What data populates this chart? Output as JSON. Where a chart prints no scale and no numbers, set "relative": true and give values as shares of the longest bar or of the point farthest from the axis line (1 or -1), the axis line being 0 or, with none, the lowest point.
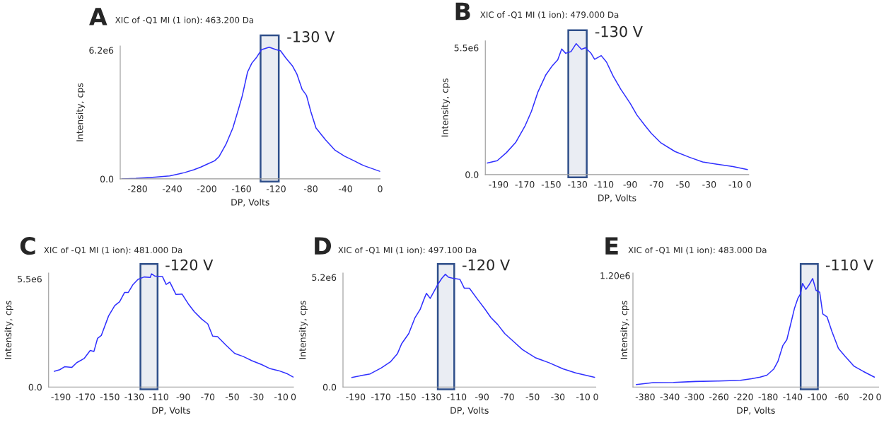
{
  "chart_data": [
    {
      "type": "line",
      "title": "A",
      "subtitle": "XIC of -Q1 MI (1 ion): 463.200 Da",
      "xlabel": "DP, Volts",
      "ylabel": "Intensity, cps",
      "series": [
        {
          "color": "#3030ff",
          "x": [
            -298,
            -282,
            -260,
            -243,
            -226,
            -215,
            -207,
            -199,
            -191,
            -186,
            -178,
            -170,
            -164,
            -159,
            -153,
            -148,
            -143,
            -137,
            -128,
            -120,
            -115,
            -109,
            -101,
            -96,
            -90,
            -85,
            -80,
            -74,
            -63,
            -52,
            -41,
            -30,
            -19,
            0
          ],
          "values": [
            0,
            20000.0,
            80000.0,
            140000.0,
            300000.0,
            440000.0,
            570000.0,
            720000.0,
            870000.0,
            1070000.0,
            1660000.0,
            2450000.0,
            3290000.0,
            4020000.0,
            5150000.0,
            5580000.0,
            5830000.0,
            6220000.0,
            6340000.0,
            6220000.0,
            6170000.0,
            5830000.0,
            5430000.0,
            5040000.0,
            4310000.0,
            4020000.0,
            3240000.0,
            2450000.0,
            1880000.0,
            1380000.0,
            1090000.0,
            870000.0,
            640000.0,
            360000.0
          ]
        }
      ],
      "xlim": [
        -300,
        0
      ],
      "xticks": [
        -280,
        -240,
        -200,
        -160,
        -120,
        -80,
        -40,
        0
      ],
      "ylim": [
        0,
        6400000
      ],
      "yticks": [
        {
          "value": 0,
          "label": "0.0"
        },
        {
          "value": 6200000,
          "label": "6.2e6"
        }
      ],
      "bands": [
        {
          "axis": "x",
          "from": -138,
          "to": -117,
          "label": "-130 V",
          "color": "#2f4f8a"
        }
      ]
    },
    {
      "type": "line",
      "title": "B",
      "subtitle": "XIC of -Q1 MI (1 ion): 479.000 Da",
      "xlabel": "DP, Volts",
      "ylabel": "Intensity, cps",
      "series": [
        {
          "color": "#3030ff",
          "x": [
            -198.5,
            -191,
            -184,
            -177,
            -170,
            -165,
            -160,
            -154,
            -149,
            -145,
            -142,
            -139,
            -135,
            -131,
            -127,
            -124,
            -120,
            -117,
            -112,
            -108,
            -103,
            -97,
            -90,
            -85,
            -79,
            -74,
            -67,
            -56,
            -45,
            -35,
            -24,
            -12,
            -1
          ],
          "values": [
            500000.0,
            600000.0,
            950000.0,
            1390000.0,
            2090000.0,
            2740000.0,
            3590000.0,
            4330000.0,
            4730000.0,
            4980000.0,
            5450000.0,
            5260000.0,
            5330000.0,
            5680000.0,
            5430000.0,
            5500000.0,
            5280000.0,
            5000000.0,
            5160000.0,
            4880000.0,
            4280000.0,
            3690000.0,
            3090000.0,
            2590000.0,
            2140000.0,
            1790000.0,
            1390000.0,
            1000000.0,
            750000.0,
            550000.0,
            450000.0,
            350000.0,
            220000.0
          ]
        }
      ],
      "xlim": [
        -200,
        0
      ],
      "xticks": [
        -190,
        -170,
        -150,
        -130,
        -110,
        -90,
        -70,
        -50,
        -30,
        -10,
        0
      ],
      "ylim": [
        0,
        5800000
      ],
      "yticks": [
        {
          "value": 0,
          "label": "0.0"
        },
        {
          "value": 5500000,
          "label": "5.5e6"
        }
      ],
      "bands": [
        {
          "axis": "x",
          "from": -137,
          "to": -123,
          "label": "-130 V",
          "color": "#2f4f8a"
        }
      ]
    },
    {
      "type": "line",
      "title": "C",
      "subtitle": "XIC of -Q1 MI (1 ion): 481.000 Da",
      "xlabel": "DP, Volts",
      "ylabel": "Intensity, cps",
      "series": [
        {
          "color": "#3030ff",
          "x": [
            -195.4,
            -190.9,
            -187,
            -181,
            -177,
            -171,
            -166,
            -163,
            -160,
            -157,
            -151,
            -146,
            -142,
            -138,
            -135,
            -131,
            -127,
            -122,
            -117,
            -116,
            -113,
            -107,
            -104,
            -101,
            -96,
            -91,
            -86,
            -81,
            -75,
            -70,
            -66,
            -62,
            -55,
            -48,
            -41,
            -34,
            -26,
            -19,
            -12,
            -5,
            0
          ],
          "values": [
            800000.0,
            880000.0,
            1030000.0,
            1000000.0,
            1240000.0,
            1450000.0,
            1860000.0,
            1810000.0,
            2480000.0,
            2620000.0,
            3620000.0,
            4140000.0,
            4340000.0,
            4810000.0,
            4810000.0,
            5220000.0,
            5480000.0,
            5600000.0,
            5580000.0,
            5760000.0,
            5640000.0,
            5620000.0,
            5220000.0,
            5340000.0,
            4710000.0,
            4730000.0,
            4240000.0,
            3830000.0,
            3460000.0,
            3210000.0,
            2590000.0,
            2560000.0,
            2120000.0,
            1710000.0,
            1550000.0,
            1340000.0,
            1140000.0,
            930000.0,
            830000.0,
            670000.0,
            500000.0
          ]
        }
      ],
      "xlim": [
        -200,
        0
      ],
      "xticks": [
        -190,
        -170,
        -150,
        -130,
        -110,
        -90,
        -70,
        -50,
        -30,
        -10,
        0
      ],
      "ylim": [
        0,
        5800000
      ],
      "yticks": [
        {
          "value": 0,
          "label": "0.0"
        },
        {
          "value": 5500000,
          "label": "5.5e6"
        }
      ],
      "bands": [
        {
          "axis": "x",
          "from": -125,
          "to": -111,
          "label": "-120 V",
          "color": "#2f4f8a"
        }
      ]
    },
    {
      "type": "line",
      "title": "D",
      "subtitle": "XIC of -Q1 MI (1 ion): 497.100 Da",
      "xlabel": "DP, Volts",
      "ylabel": "Intensity, cps",
      "series": [
        {
          "color": "#3030ff",
          "x": [
            -193,
            -185.6,
            -178.5,
            -169.6,
            -162.5,
            -157,
            -153.6,
            -148,
            -143,
            -139,
            -136,
            -134,
            -131,
            -128,
            -124.5,
            -121.8,
            -119,
            -116.5,
            -113,
            -107.5,
            -104,
            -100,
            -93.5,
            -88,
            -83,
            -77.6,
            -72,
            -65,
            -58,
            -47.5,
            -37,
            -26,
            -16,
            -1
          ],
          "values": [
            450000.0,
            540000.0,
            620000.0,
            910000.0,
            1190000.0,
            1570000.0,
            2050000.0,
            2530000.0,
            3290000.0,
            3670000.0,
            4150000.0,
            4440000.0,
            4200000.0,
            4530000.0,
            4910000.0,
            5150000.0,
            5340000.0,
            5200000.0,
            5150000.0,
            5100000.0,
            4680000.0,
            4680000.0,
            4150000.0,
            3720000.0,
            3290000.0,
            2960000.0,
            2530000.0,
            2150000.0,
            1770000.0,
            1380000.0,
            1150000.0,
            860000.0,
            670000.0,
            460000.0
          ]
        }
      ],
      "xlim": [
        -200,
        0
      ],
      "xticks": [
        -190,
        -170,
        -150,
        -130,
        -110,
        -90,
        -70,
        -50,
        -30,
        -10,
        0
      ],
      "ylim": [
        0,
        5400000
      ],
      "yticks": [
        {
          "value": 0,
          "label": "0.0"
        },
        {
          "value": 5200000,
          "label": "5.2e6"
        }
      ],
      "bands": [
        {
          "axis": "x",
          "from": -125,
          "to": -112,
          "label": "-120 V",
          "color": "#2f4f8a"
        }
      ]
    },
    {
      "type": "line",
      "title": "E",
      "subtitle": "XIC of -Q1 MI (1 ion): 483.000 Da",
      "xlabel": "DP, Volts",
      "ylabel": "Intensity, cps",
      "relative": true,
      "annotations": [
        "1.20e6"
      ],
      "series": [
        {
          "color": "#3030ff",
          "x": [
            -394.5,
            -367,
            -334,
            -298,
            -262,
            -225,
            -207,
            -193,
            -182,
            -171,
            -164,
            -156,
            -149.5,
            -142,
            -137,
            -131.5,
            -127.5,
            -124,
            -118.5,
            -113,
            -107.5,
            -102,
            -96,
            -91,
            -84,
            -76,
            -65.5,
            -54.5,
            -40,
            -25.5,
            -7
          ],
          "values": [
            0.022,
            0.04,
            0.042,
            0.051,
            0.055,
            0.062,
            0.076,
            0.091,
            0.109,
            0.164,
            0.236,
            0.382,
            0.436,
            0.609,
            0.727,
            0.818,
            0.855,
            0.955,
            0.9,
            0.945,
            1.0,
            0.891,
            0.873,
            0.673,
            0.645,
            0.509,
            0.355,
            0.282,
            0.191,
            0.145,
            0.091
          ]
        }
      ],
      "xlim": [
        -400,
        0
      ],
      "xticks": [
        -380,
        -340,
        -300,
        -260,
        -220,
        -180,
        -140,
        -100,
        -60,
        -20,
        0
      ],
      "bands": [
        {
          "axis": "x",
          "from": -127,
          "to": -99,
          "label": "-110 V",
          "color": "#2f4f8a"
        }
      ]
    }
  ]
}
